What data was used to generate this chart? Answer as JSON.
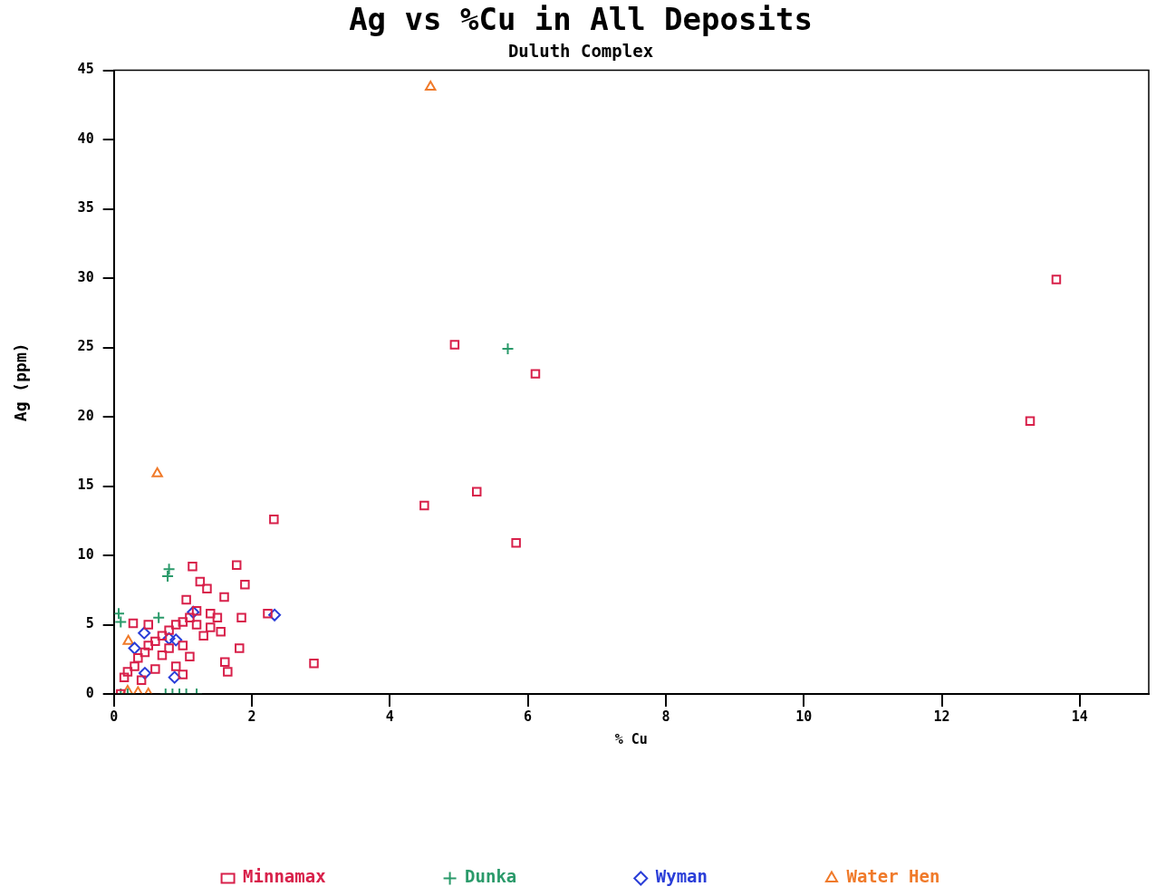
{
  "chart_data": {
    "type": "scatter",
    "title": "Ag vs %Cu in All Deposits",
    "subtitle": "Duluth Complex",
    "xlabel": "% Cu",
    "ylabel": "Ag (ppm)",
    "xlim": [
      0,
      15
    ],
    "xticks": [
      0,
      2,
      4,
      6,
      8,
      10,
      12,
      14
    ],
    "ylim": [
      0,
      45
    ],
    "yticks": [
      0,
      5,
      10,
      15,
      20,
      25,
      30,
      35,
      40,
      45
    ],
    "grid": false,
    "legend": "bottom",
    "series": [
      {
        "name": "Minnamax",
        "color": "#d8204a",
        "marker": "square",
        "x": [
          13.66,
          13.28,
          4.94,
          6.11,
          5.26,
          4.5,
          5.83,
          2.32,
          2.9,
          1.78,
          1.14,
          1.25,
          1.35,
          1.6,
          1.9,
          2.23,
          1.85,
          1.82,
          1.61,
          1.65,
          1.55,
          1.05,
          0.28,
          0.5,
          0.15,
          0.2,
          0.3,
          0.35,
          0.45,
          0.5,
          0.6,
          0.7,
          0.8,
          0.9,
          1.0,
          1.1,
          1.2,
          1.4,
          1.0,
          0.9,
          1.1,
          1.0,
          0.6,
          0.4,
          0.1,
          1.4,
          1.5,
          1.3,
          0.7,
          0.8,
          1.2
        ],
        "values": [
          29.9,
          19.7,
          25.2,
          23.1,
          14.6,
          13.6,
          10.9,
          12.6,
          2.2,
          9.3,
          9.2,
          8.1,
          7.6,
          7.0,
          7.9,
          5.8,
          5.5,
          3.3,
          2.3,
          1.6,
          4.5,
          6.8,
          5.1,
          5.0,
          1.2,
          1.6,
          2.0,
          2.6,
          3.0,
          3.5,
          3.8,
          4.2,
          4.6,
          5.0,
          5.2,
          5.5,
          5.0,
          4.8,
          3.5,
          2.0,
          2.7,
          1.4,
          1.8,
          1.0,
          0.0,
          5.8,
          5.5,
          4.2,
          2.8,
          3.3,
          6.0
        ]
      },
      {
        "name": "Dunka",
        "color": "#2a9a6a",
        "marker": "cross",
        "x": [
          5.71,
          0.8,
          0.78,
          0.07,
          0.1,
          0.65,
          0.75,
          0.85,
          0.95,
          1.05,
          1.2,
          0.1,
          0.2
        ],
        "values": [
          24.9,
          9.0,
          8.5,
          5.8,
          5.2,
          5.5,
          0,
          0,
          0,
          0,
          0,
          0,
          0
        ]
      },
      {
        "name": "Wyman",
        "color": "#2a3ed8",
        "marker": "diamond",
        "x": [
          2.33,
          1.15,
          0.44,
          0.3,
          0.8,
          0.9,
          0.45,
          0.88
        ],
        "values": [
          5.7,
          5.9,
          4.4,
          3.3,
          4.0,
          3.9,
          1.5,
          1.2
        ]
      },
      {
        "name": "Water Hen",
        "color": "#f07a2a",
        "marker": "triangle",
        "x": [
          4.59,
          0.63,
          0.21,
          0.35,
          0.5,
          0.2
        ],
        "values": [
          43.8,
          15.9,
          3.8,
          0.1,
          0.0,
          0.2
        ]
      }
    ]
  }
}
